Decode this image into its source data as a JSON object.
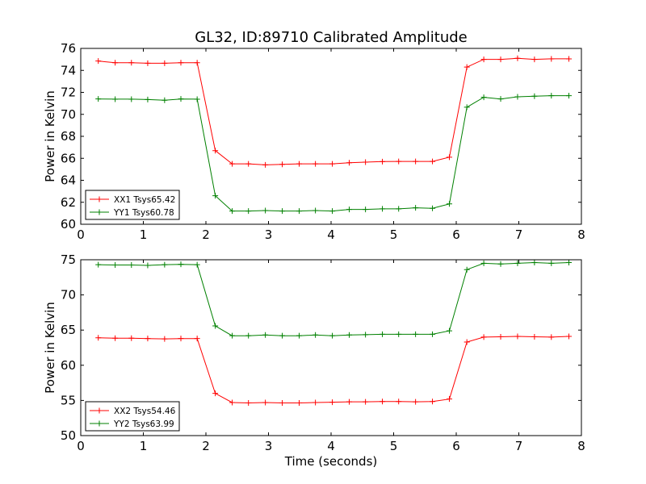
{
  "chart_data": [
    {
      "type": "line",
      "title": "GL32, ID:89710 Calibrated Amplitude",
      "xlabel": "",
      "ylabel": "Power in Kelvin",
      "xlim": [
        0,
        8
      ],
      "ylim": [
        60,
        76
      ],
      "xticks": [
        0,
        1,
        2,
        3,
        4,
        5,
        6,
        7,
        8
      ],
      "yticks": [
        60,
        62,
        64,
        66,
        68,
        70,
        72,
        74,
        76
      ],
      "grid": false,
      "legend_position": "lower-left",
      "x": [
        0.28,
        0.55,
        0.81,
        1.07,
        1.34,
        1.6,
        1.86,
        2.15,
        2.42,
        2.68,
        2.95,
        3.22,
        3.49,
        3.75,
        4.02,
        4.29,
        4.55,
        4.82,
        5.08,
        5.35,
        5.62,
        5.89,
        6.17,
        6.44,
        6.71,
        6.98,
        7.25,
        7.52,
        7.8
      ],
      "series": [
        {
          "name": "XX1 Tsys65.42",
          "color": "#ff0000",
          "values": [
            74.85,
            74.7,
            74.7,
            74.65,
            74.65,
            74.7,
            74.7,
            66.7,
            65.5,
            65.5,
            65.4,
            65.45,
            65.5,
            65.5,
            65.5,
            65.6,
            65.65,
            65.7,
            65.72,
            65.72,
            65.72,
            66.1,
            74.3,
            75.0,
            75.0,
            75.1,
            75.0,
            75.05,
            75.05
          ]
        },
        {
          "name": "YY1 Tsys60.78",
          "color": "#008000",
          "values": [
            71.4,
            71.38,
            71.38,
            71.35,
            71.28,
            71.4,
            71.38,
            62.6,
            61.2,
            61.2,
            61.25,
            61.2,
            61.2,
            61.25,
            61.2,
            61.35,
            61.35,
            61.4,
            61.4,
            61.5,
            61.45,
            61.85,
            70.65,
            71.55,
            71.4,
            71.6,
            71.65,
            71.7,
            71.7
          ]
        }
      ]
    },
    {
      "type": "line",
      "title": "",
      "xlabel": "Time (seconds)",
      "ylabel": "Power in Kelvin",
      "xlim": [
        0,
        8
      ],
      "ylim": [
        50,
        75
      ],
      "xticks": [
        0,
        1,
        2,
        3,
        4,
        5,
        6,
        7,
        8
      ],
      "yticks": [
        50,
        55,
        60,
        65,
        70,
        75
      ],
      "grid": false,
      "legend_position": "lower-left",
      "x": [
        0.28,
        0.55,
        0.81,
        1.07,
        1.34,
        1.6,
        1.86,
        2.15,
        2.42,
        2.68,
        2.95,
        3.22,
        3.49,
        3.75,
        4.02,
        4.29,
        4.55,
        4.82,
        5.08,
        5.35,
        5.62,
        5.89,
        6.17,
        6.44,
        6.71,
        6.98,
        7.25,
        7.52,
        7.8
      ],
      "series": [
        {
          "name": "XX2 Tsys54.46",
          "color": "#ff0000",
          "values": [
            63.9,
            63.85,
            63.85,
            63.8,
            63.75,
            63.8,
            63.8,
            56.0,
            54.7,
            54.65,
            54.7,
            54.65,
            54.65,
            54.7,
            54.75,
            54.8,
            54.8,
            54.85,
            54.85,
            54.8,
            54.85,
            55.2,
            63.3,
            64.0,
            64.05,
            64.1,
            64.05,
            64.0,
            64.1
          ]
        },
        {
          "name": "YY2 Tsys63.99",
          "color": "#008000",
          "values": [
            74.3,
            74.25,
            74.25,
            74.2,
            74.3,
            74.35,
            74.3,
            65.6,
            64.2,
            64.2,
            64.3,
            64.2,
            64.2,
            64.3,
            64.2,
            64.3,
            64.35,
            64.4,
            64.4,
            64.4,
            64.4,
            64.9,
            73.6,
            74.5,
            74.4,
            74.5,
            74.6,
            74.5,
            74.6
          ]
        }
      ]
    }
  ]
}
